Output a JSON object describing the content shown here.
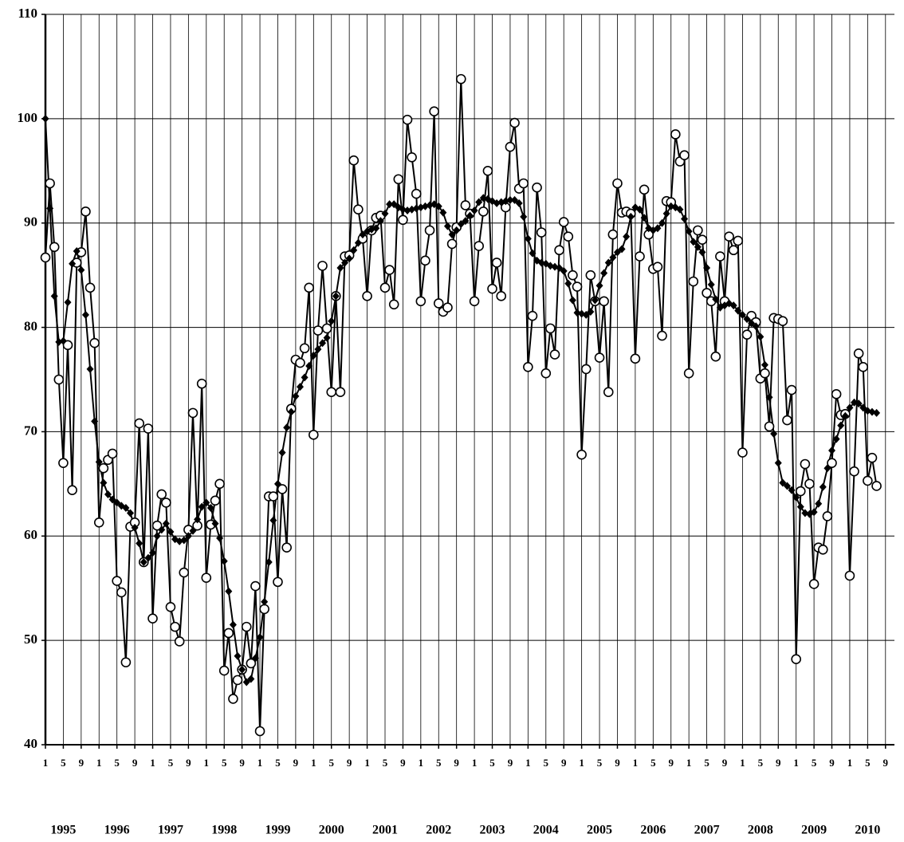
{
  "chart_data": {
    "type": "line",
    "categories": [
      "1",
      null,
      null,
      null,
      "5",
      null,
      null,
      null,
      "9",
      null,
      null,
      null,
      "1",
      null,
      null,
      null,
      "5",
      null,
      null,
      null,
      "9",
      null,
      null,
      null,
      "1",
      null,
      null,
      null,
      "5",
      null,
      null,
      null,
      "9",
      null,
      null,
      null,
      "1",
      null,
      null,
      null,
      "5",
      null,
      null,
      null,
      "9",
      null,
      null,
      null,
      "1",
      null,
      null,
      null,
      "5",
      null,
      null,
      null,
      "9",
      null,
      null,
      null,
      "1",
      null,
      null,
      null,
      "5",
      null,
      null,
      null,
      "9",
      null,
      null,
      null,
      "1",
      null,
      null,
      null,
      "5",
      null,
      null,
      null,
      "9",
      null,
      null,
      null,
      "1",
      null,
      null,
      null,
      "5",
      null,
      null,
      null,
      "9",
      null,
      null,
      null,
      "1",
      null,
      null,
      null,
      "5",
      null,
      null,
      null,
      "9",
      null,
      null,
      null,
      "1",
      null,
      null,
      null,
      "5",
      null,
      null,
      null,
      "9",
      null,
      null,
      null,
      "1",
      null,
      null,
      null,
      "5",
      null,
      null,
      null,
      "9",
      null,
      null,
      null,
      "1",
      null,
      null,
      null,
      "5",
      null,
      null,
      null,
      "9",
      null,
      null,
      null,
      "1",
      null,
      null,
      null,
      "5",
      null,
      null,
      null,
      "9",
      null,
      null,
      null,
      "1",
      null,
      null,
      null,
      "5",
      null,
      null,
      null,
      "9",
      null,
      null,
      null,
      "1",
      null,
      null,
      null,
      "5",
      null,
      null,
      null,
      "9",
      null,
      null,
      null,
      "1",
      null,
      null,
      null,
      "5",
      null,
      null,
      null,
      "9"
    ],
    "years": [
      "1995",
      "1996",
      "1997",
      "1998",
      "1999",
      "2000",
      "2001",
      "2002",
      "2003",
      "2004",
      "2005",
      "2006",
      "2007",
      "2008",
      "2009",
      "2010"
    ],
    "series": [
      {
        "color": "#000000",
        "marker": "circle",
        "values": [
          86.7,
          93.8,
          87.7,
          75.0,
          67.0,
          78.3,
          64.4,
          86.2,
          87.2,
          91.1,
          83.8,
          78.5,
          61.3,
          66.5,
          67.3,
          67.9,
          55.7,
          54.6,
          47.9,
          60.9,
          61.3,
          70.8,
          57.5,
          70.3,
          52.1,
          61.0,
          64.0,
          63.2,
          53.2,
          51.3,
          49.9,
          56.5,
          60.6,
          71.8,
          61.0,
          74.6,
          56.0,
          61.1,
          63.4,
          65.0,
          47.1,
          50.7,
          44.4,
          46.2,
          47.2,
          51.3,
          47.8,
          55.2,
          41.3,
          53.0,
          63.8,
          63.8,
          55.6,
          64.5,
          58.9,
          72.2,
          76.9,
          76.6,
          78.0,
          83.8,
          69.7,
          79.7,
          85.9,
          79.9,
          73.8,
          83.0,
          73.8,
          86.8,
          86.9,
          96.0,
          91.3,
          88.5,
          83.0,
          89.3,
          90.5,
          90.7,
          83.8,
          85.5,
          82.2,
          94.2,
          90.3,
          99.9,
          96.3,
          92.8,
          82.5,
          86.4,
          89.3,
          100.7,
          82.3,
          81.5,
          81.9,
          88.0,
          89.6,
          103.8,
          91.7,
          90.9,
          82.5,
          87.8,
          91.1,
          95.0,
          83.7,
          86.2,
          83.0,
          91.5,
          97.3,
          99.6,
          93.3,
          93.8,
          76.2,
          81.1,
          93.4,
          89.1,
          75.6,
          79.9,
          77.4,
          87.4,
          90.1,
          88.7,
          85.0,
          83.9,
          67.8,
          76.0,
          85.0,
          82.5,
          77.1,
          82.5,
          73.8,
          88.9,
          93.8,
          91.0,
          91.1,
          90.9,
          77.0,
          86.8,
          93.2,
          88.9,
          85.6,
          85.8,
          79.2,
          92.1,
          92.0,
          98.5,
          95.9,
          96.5,
          75.6,
          84.4,
          89.3,
          88.4,
          83.3,
          82.5,
          77.2,
          86.8,
          82.5,
          88.7,
          87.4,
          88.3,
          68.0,
          79.3,
          81.1,
          80.5,
          75.1,
          75.6,
          70.5,
          80.9,
          80.8,
          80.6,
          71.1,
          74.0,
          48.2,
          64.3,
          66.9,
          65.0,
          55.4,
          58.9,
          58.7,
          61.9,
          67.0,
          73.6,
          71.6,
          71.7,
          56.2,
          66.2,
          77.5,
          76.2,
          65.3,
          67.5,
          64.8,
          null,
          null
        ]
      },
      {
        "color": "#000000",
        "marker": "diamond",
        "values": [
          100,
          91.4,
          83,
          78.6,
          78.7,
          82.4,
          86.1,
          87.3,
          85.5,
          81.2,
          76,
          71,
          67.1,
          65.1,
          64,
          63.5,
          63.2,
          62.9,
          62.7,
          62.2,
          60.8,
          59.3,
          57.5,
          57.9,
          58.4,
          60,
          60.6,
          61.2,
          60.4,
          59.7,
          59.5,
          59.6,
          60,
          60.5,
          61.6,
          62.8,
          63.2,
          62.7,
          61.2,
          59.8,
          57.6,
          54.7,
          51.5,
          48.5,
          47.2,
          46,
          46.3,
          48.3,
          50.3,
          53.7,
          57.5,
          61.5,
          65,
          68,
          70.4,
          71.9,
          73.4,
          74.3,
          75.2,
          76.3,
          77.3,
          77.9,
          78.5,
          79,
          80.6,
          83,
          85.7,
          86.2,
          86.6,
          87.4,
          88.1,
          88.9,
          89.2,
          89.4,
          89.5,
          90.2,
          90.9,
          91.8,
          91.8,
          91.5,
          91.3,
          91.2,
          91.3,
          91.4,
          91.5,
          91.6,
          91.7,
          91.8,
          91.6,
          91,
          89.7,
          88.9,
          89.3,
          89.9,
          90.2,
          90.7,
          91.2,
          92,
          92.4,
          92.3,
          92.1,
          91.9,
          92,
          92.1,
          92.2,
          92.2,
          91.9,
          90.6,
          88.5,
          87.1,
          86.4,
          86.2,
          86.1,
          85.9,
          85.8,
          85.7,
          85.4,
          84.2,
          82.6,
          81.4,
          81.3,
          81.2,
          81.5,
          82.6,
          84,
          85.2,
          86.2,
          86.7,
          87.2,
          87.5,
          88.7,
          90.6,
          91.5,
          91.3,
          90.5,
          89.5,
          89.3,
          89.5,
          90,
          90.9,
          91.6,
          91.5,
          91.3,
          90.4,
          89.2,
          88.2,
          87.7,
          87.2,
          85.7,
          84.1,
          82.7,
          81.9,
          82.1,
          82.3,
          82.1,
          81.6,
          81.2,
          80.8,
          80.4,
          80.1,
          79.1,
          76.4,
          73.3,
          69.8,
          67,
          65.1,
          64.8,
          64.4,
          63.7,
          62.8,
          62.2,
          62.1,
          62.3,
          63.1,
          64.7,
          66.5,
          68.2,
          69.3,
          70.6,
          71.5,
          72.3,
          72.8,
          72.7,
          72.3,
          72,
          71.9,
          71.8,
          null,
          null
        ]
      }
    ],
    "ylim": [
      40,
      110
    ],
    "yticks": [
      40,
      50,
      60,
      70,
      80,
      90,
      100,
      110
    ],
    "grid": true
  }
}
